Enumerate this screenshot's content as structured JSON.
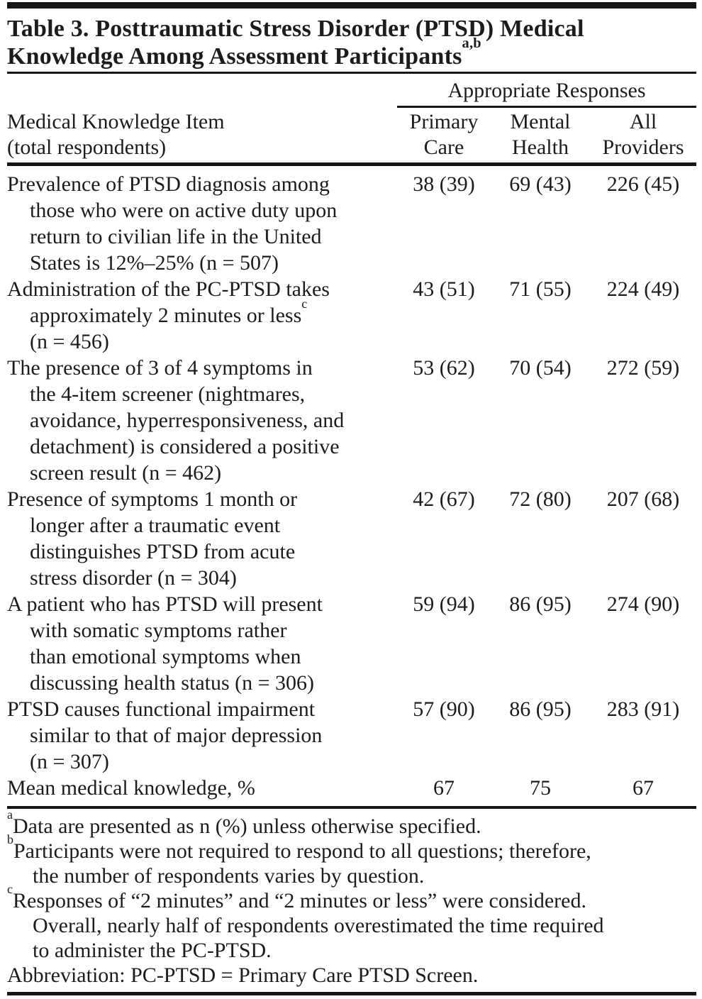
{
  "title": {
    "line1": "Table 3. Posttraumatic Stress Disorder (PTSD) Medical",
    "line2": "Knowledge Among Assessment Participants",
    "superscript": "a,b"
  },
  "header": {
    "spanner": "Appropriate Responses",
    "stub_line1": "Medical Knowledge Item",
    "stub_line2": "(total respondents)",
    "columns": [
      {
        "line1": "Primary",
        "line2": "Care"
      },
      {
        "line1": "Mental",
        "line2": "Health"
      },
      {
        "line1": "All",
        "line2": "Providers"
      }
    ]
  },
  "rows": [
    {
      "lines": [
        "Prevalence of PTSD diagnosis among",
        "those who were on active duty upon",
        "return to civilian life in the United",
        "States is 12%–25% (n = 507)"
      ],
      "values": [
        "38 (39)",
        "69 (43)",
        "226 (45)"
      ]
    },
    {
      "lines": [
        "Administration of the PC-PTSD takes",
        "approximately 2 minutes or less",
        "(n = 456)"
      ],
      "line2_superscript": "c",
      "values": [
        "43 (51)",
        "71 (55)",
        "224 (49)"
      ]
    },
    {
      "lines": [
        "The presence of 3 of 4 symptoms in",
        "the 4-item screener (nightmares,",
        "avoidance, hyperresponsiveness, and",
        "detachment) is considered a positive",
        "screen result (n = 462)"
      ],
      "values": [
        "53 (62)",
        "70 (54)",
        "272 (59)"
      ]
    },
    {
      "lines": [
        "Presence of symptoms 1 month or",
        "longer after a traumatic event",
        "distinguishes PTSD from acute",
        "stress disorder (n = 304)"
      ],
      "values": [
        "42 (67)",
        "72 (80)",
        "207 (68)"
      ]
    },
    {
      "lines": [
        "A patient who has PTSD will present",
        "with somatic symptoms rather",
        "than emotional symptoms when",
        "discussing health status (n = 306)"
      ],
      "values": [
        "59 (94)",
        "86 (95)",
        "274 (90)"
      ]
    },
    {
      "lines": [
        "PTSD causes functional impairment",
        "similar to that of major depression",
        "(n = 307)"
      ],
      "values": [
        "57 (90)",
        "86 (95)",
        "283 (91)"
      ]
    },
    {
      "lines": [
        "Mean medical knowledge, %"
      ],
      "values": [
        "67",
        "75",
        "67"
      ]
    }
  ],
  "footnotes": [
    {
      "marker": "a",
      "lines": [
        "Data are presented as n (%) unless otherwise specified."
      ]
    },
    {
      "marker": "b",
      "lines": [
        "Participants were not required to respond to all questions; therefore,",
        "the number of respondents varies by question."
      ]
    },
    {
      "marker": "c",
      "lines": [
        "Responses of “2 minutes” and “2 minutes or less” were considered.",
        "Overall, nearly half of respondents overestimated the time required",
        "to administer the PC-PTSD."
      ]
    },
    {
      "marker": "",
      "lines": [
        "Abbreviation: PC-PTSD = Primary Care PTSD Screen."
      ]
    }
  ],
  "colors": {
    "background": "#ffffff",
    "text": "#1c1c1c",
    "rule": "#161616"
  }
}
